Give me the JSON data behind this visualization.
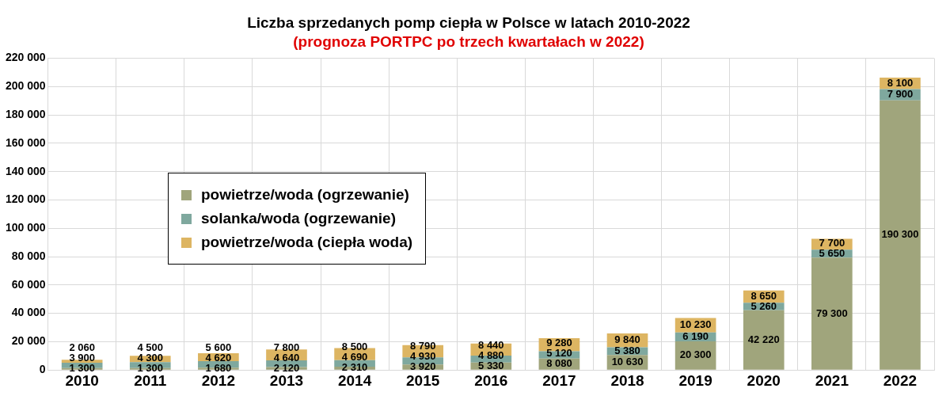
{
  "chart_data": {
    "type": "bar",
    "stacked": true,
    "title": "Liczba sprzedanych pomp ciepła w Polsce w latach 2010-2022",
    "subtitle": "(prognoza PORTPC po trzech kwartałach w 2022)",
    "categories": [
      "2010",
      "2011",
      "2012",
      "2013",
      "2014",
      "2015",
      "2016",
      "2017",
      "2018",
      "2019",
      "2020",
      "2021",
      "2022"
    ],
    "series": [
      {
        "name": "powietrze/woda (ogrzewanie)",
        "color": "#a0a57c",
        "values": [
          1300,
          1300,
          1680,
          2120,
          2310,
          3920,
          5330,
          8080,
          10630,
          20300,
          42220,
          79300,
          190300
        ],
        "value_labels": [
          "1 300",
          "1 300",
          "1 680",
          "2 120",
          "2 310",
          "3 920",
          "5 330",
          "8 080",
          "10 630",
          "20 300",
          "42 220",
          "79 300",
          "190 300"
        ]
      },
      {
        "name": "solanka/woda (ogrzewanie)",
        "color": "#7fa89e",
        "values": [
          3900,
          4300,
          4620,
          4640,
          4690,
          4930,
          4880,
          5120,
          5380,
          6190,
          5260,
          5650,
          7900
        ],
        "value_labels": [
          "3 900",
          "4 300",
          "4 620",
          "4 640",
          "4 690",
          "4 930",
          "4 880",
          "5 120",
          "5 380",
          "6 190",
          "5 260",
          "5 650",
          "7 900"
        ]
      },
      {
        "name": "powietrze/woda (ciepła woda)",
        "color": "#ddb562",
        "values": [
          2060,
          4500,
          5600,
          7800,
          8500,
          8790,
          8440,
          9280,
          9840,
          10230,
          8650,
          7700,
          8100
        ],
        "value_labels": [
          "2 060",
          "4 500",
          "5 600",
          "7 800",
          "8 500",
          "8 790",
          "8 440",
          "9 280",
          "9 840",
          "10 230",
          "8 650",
          "7 700",
          "8 100"
        ]
      }
    ],
    "ylim": [
      0,
      220000
    ],
    "yticks": [
      {
        "value": 0,
        "label": "0"
      },
      {
        "value": 20000,
        "label": "20 000"
      },
      {
        "value": 40000,
        "label": "40 000"
      },
      {
        "value": 60000,
        "label": "60 000"
      },
      {
        "value": 80000,
        "label": "80 000"
      },
      {
        "value": 100000,
        "label": "100 000"
      },
      {
        "value": 120000,
        "label": "120 000"
      },
      {
        "value": 140000,
        "label": "140 000"
      },
      {
        "value": 160000,
        "label": "160 000"
      },
      {
        "value": 180000,
        "label": "180 000"
      },
      {
        "value": 200000,
        "label": "200 000"
      },
      {
        "value": 220000,
        "label": "220 000"
      }
    ],
    "grid": true,
    "legend": "left"
  }
}
